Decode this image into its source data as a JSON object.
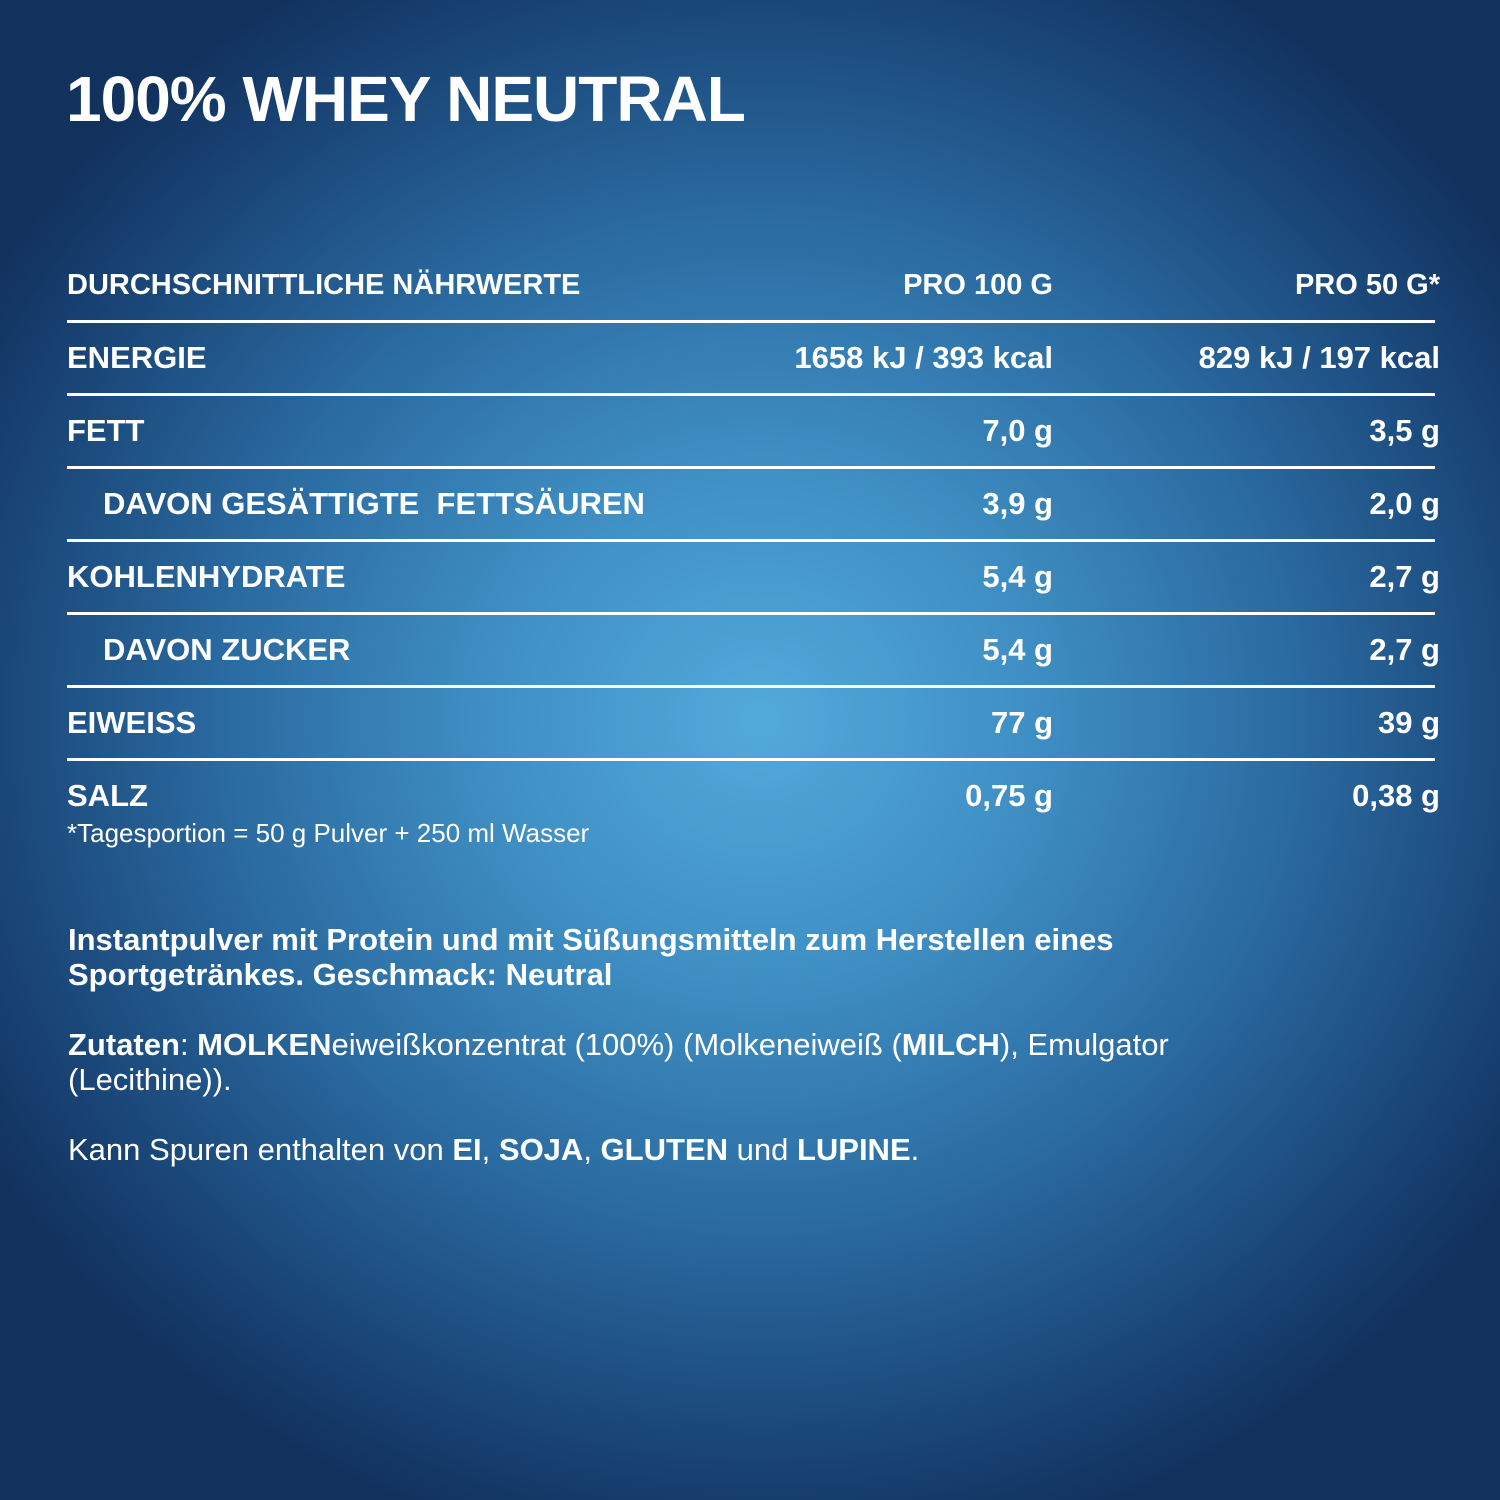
{
  "title": "100% WHEY NEUTRAL",
  "table": {
    "headers": [
      "DURCHSCHNITTLICHE NÄHRWERTE",
      "PRO 100 G",
      "PRO 50 G*"
    ],
    "rows": [
      {
        "label": "ENERGIE",
        "per100": "1658 kJ / 393 kcal",
        "per50": "829 kJ / 197 kcal"
      },
      {
        "label": "FETT",
        "per100": "7,0 g",
        "per50": "3,5 g"
      },
      {
        "label": "DAVON GESÄTTIGTE  FETTSÄUREN",
        "per100": "3,9 g",
        "per50": "2,0 g"
      },
      {
        "label": "KOHLENHYDRATE",
        "per100": "5,4 g",
        "per50": "2,7 g"
      },
      {
        "label": "DAVON ZUCKER",
        "per100": "5,4 g",
        "per50": "2,7 g"
      },
      {
        "label": "EIWEISS",
        "per100": "77 g",
        "per50": "39 g"
      },
      {
        "label": "SALZ",
        "per100": "0,75 g",
        "per50": "0,38 g"
      }
    ]
  },
  "footnote": "*Tagesportion = 50 g Pulver + 250 ml Wasser",
  "description": "Instantpulver mit Protein und mit Süßungsmitteln zum Herstellen eines Sportgetränkes. Geschmack: Neutral",
  "ingredients": [
    "Zutaten",
    ": ",
    "MOLKEN",
    "eiweißkonzentrat (100%) (Molkeneiweiß (",
    "MILCH",
    "), Emulgator (Lecithine))."
  ],
  "traces": [
    "Kann Spuren enthalten von ",
    "EI",
    ", ",
    "SOJA",
    ", ",
    "GLUTEN",
    " und ",
    "LUPINE",
    "."
  ]
}
